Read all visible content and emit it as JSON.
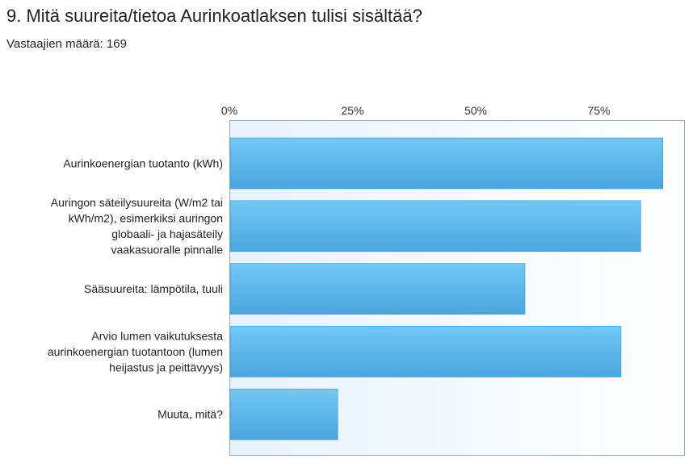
{
  "question": {
    "title": "9. Mitä suureita/tietoa Aurinkoatlaksen tulisi sisältää?",
    "respondents": "Vastaajien määrä: 169"
  },
  "colors": {
    "bar_top": "#72c8f5",
    "bar_bottom": "#4aa6e0",
    "bar_edge": "#3a94cf",
    "plot_bg_left": "#e6f3fb",
    "plot_bg_right": "#ffffff",
    "plot_border": "#9aa8b4"
  },
  "chart_data": {
    "type": "bar",
    "orientation": "horizontal",
    "title": "",
    "xlabel": "",
    "ylabel": "",
    "xlim": [
      0,
      100
    ],
    "axis_position": "top",
    "grid": false,
    "tick_labels": [
      "0%",
      "25%",
      "50%",
      "75%"
    ],
    "tick_values": [
      0,
      25,
      50,
      75
    ],
    "categories": [
      [
        "Aurinkoenergian tuotanto (kWh)"
      ],
      [
        "Auringon säteilysuureita (W/m2 tai",
        "kWh/m2), esimerkiksi auringon",
        "globaali- ja hajasäteily",
        "vaakasuoralle pinnalle"
      ],
      [
        "Sääsuureita: lämpötila, tuuli"
      ],
      [
        "Arvio lumen vaikutuksesta",
        "aurinkoenergian tuotantoon (lumen",
        "heijastus ja peittävyys)"
      ],
      [
        "Muuta, mitä?"
      ]
    ],
    "values": [
      88,
      83.5,
      60,
      79.5,
      22
    ]
  }
}
